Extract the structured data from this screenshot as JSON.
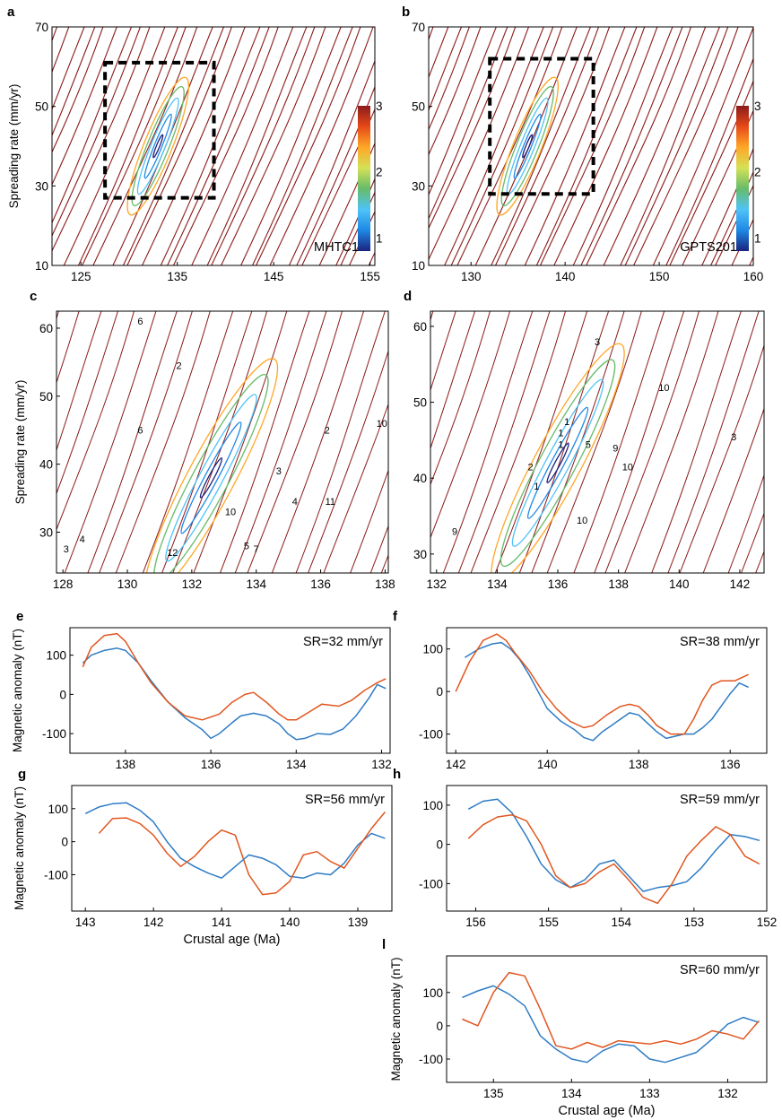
{
  "figure": {
    "contour_panels": [
      {
        "id": "a",
        "letter": "a",
        "model_label": "MHTC12",
        "xlim": [
          122,
          155.5
        ],
        "ylim": [
          10,
          70
        ],
        "xticks": [
          125,
          135,
          145,
          155
        ],
        "yticks": [
          10,
          30,
          50,
          70
        ],
        "ylabel": "Spreading rate (mm/yr)",
        "colorbar": {
          "ticks": [
            1,
            2,
            3
          ],
          "range": [
            0.8,
            3
          ]
        },
        "dashed_box": {
          "x": [
            127.5,
            138.8
          ],
          "y": [
            27,
            61
          ]
        }
      },
      {
        "id": "b",
        "letter": "b",
        "model_label": "GPTS2012",
        "xlim": [
          125.5,
          160
        ],
        "ylim": [
          10,
          70
        ],
        "xticks": [
          130,
          140,
          150,
          160
        ],
        "yticks": [
          10,
          30,
          50,
          70
        ],
        "ylabel": "",
        "colorbar": {
          "ticks": [
            1,
            2,
            3
          ],
          "range": [
            0.8,
            3
          ]
        },
        "dashed_box": {
          "x": [
            132,
            143
          ],
          "y": [
            28,
            62
          ]
        }
      },
      {
        "id": "c",
        "letter": "c",
        "model_label": "",
        "xlim": [
          127.8,
          138.1
        ],
        "ylim": [
          24,
          62.5
        ],
        "xticks": [
          128,
          130,
          132,
          134,
          136,
          138
        ],
        "yticks": [
          30,
          40,
          50,
          60
        ],
        "ylabel": "Spreading rate (mm/yr)",
        "contour_labels": [
          {
            "t": "6",
            "x": 130.4,
            "y": 60.5
          },
          {
            "t": "2",
            "x": 131.6,
            "y": 54
          },
          {
            "t": "6",
            "x": 130.4,
            "y": 44.5
          },
          {
            "t": "2",
            "x": 136.2,
            "y": 44.5
          },
          {
            "t": "10",
            "x": 137.9,
            "y": 45.5
          },
          {
            "t": "3",
            "x": 134.7,
            "y": 38.5
          },
          {
            "t": "10",
            "x": 133.2,
            "y": 32.5
          },
          {
            "t": "4",
            "x": 135.2,
            "y": 34
          },
          {
            "t": "11",
            "x": 136.3,
            "y": 34
          },
          {
            "t": "4",
            "x": 128.6,
            "y": 28.5
          },
          {
            "t": "3",
            "x": 128.1,
            "y": 27
          },
          {
            "t": "12",
            "x": 131.4,
            "y": 26.5
          },
          {
            "t": "5",
            "x": 133.7,
            "y": 27.5
          },
          {
            "t": "7",
            "x": 134,
            "y": 27
          }
        ]
      },
      {
        "id": "d",
        "letter": "d",
        "model_label": "",
        "xlim": [
          131.8,
          142.8
        ],
        "ylim": [
          27.5,
          62
        ],
        "xticks": [
          132,
          134,
          136,
          138,
          140,
          142
        ],
        "yticks": [
          30,
          40,
          50,
          60
        ],
        "ylabel": "",
        "contour_labels": [
          {
            "t": "3",
            "x": 137.3,
            "y": 57.5
          },
          {
            "t": "10",
            "x": 139.5,
            "y": 51.5
          },
          {
            "t": "1",
            "x": 136.3,
            "y": 47
          },
          {
            "t": "1",
            "x": 136.1,
            "y": 45.5
          },
          {
            "t": "1",
            "x": 136.1,
            "y": 44
          },
          {
            "t": "5",
            "x": 137,
            "y": 44
          },
          {
            "t": "9",
            "x": 137.9,
            "y": 43.5
          },
          {
            "t": "10",
            "x": 138.3,
            "y": 41
          },
          {
            "t": "2",
            "x": 135.1,
            "y": 41
          },
          {
            "t": "1",
            "x": 135.3,
            "y": 38.5
          },
          {
            "t": "10",
            "x": 136.8,
            "y": 34
          },
          {
            "t": "9",
            "x": 132.6,
            "y": 32.5
          },
          {
            "t": "3",
            "x": 141.8,
            "y": 45
          }
        ]
      }
    ],
    "contour_colormap": [
      "#1a237e",
      "#1e88e5",
      "#4fc3f7",
      "#66bb6a",
      "#d4e157",
      "#ffa726",
      "#e64a19",
      "#8b1a1a"
    ]
  },
  "chart_data": [
    {
      "panel": "e",
      "type": "line",
      "letter": "e",
      "annotation": "SR=32 mm/yr",
      "xlim": [
        139.3,
        131.8
      ],
      "ylim": [
        -150,
        170
      ],
      "xticks": [
        138,
        136,
        134,
        132
      ],
      "yticks": [
        100,
        0,
        -100
      ],
      "ylabel": "Magnetic anomaly (nT)",
      "xlabel": "",
      "series": [
        {
          "color": "#2e7cc4",
          "x": [
            139,
            138.8,
            138.5,
            138.2,
            138,
            137.7,
            137.4,
            137,
            136.6,
            136.2,
            136,
            135.8,
            135.5,
            135.3,
            135,
            134.7,
            134.4,
            134.2,
            134,
            133.8,
            133.5,
            133.2,
            132.9,
            132.6,
            132.3,
            132.1,
            131.9
          ],
          "y": [
            80,
            100,
            112,
            118,
            112,
            80,
            35,
            -20,
            -60,
            -90,
            -112,
            -100,
            -72,
            -55,
            -48,
            -55,
            -75,
            -100,
            -115,
            -112,
            -100,
            -102,
            -88,
            -55,
            -10,
            25,
            15
          ]
        },
        {
          "color": "#e0561f",
          "x": [
            139,
            138.8,
            138.5,
            138.2,
            138,
            137.7,
            137.4,
            137,
            136.6,
            136.2,
            135.8,
            135.5,
            135.2,
            135,
            134.7,
            134.4,
            134.2,
            134,
            133.7,
            133.4,
            133,
            132.7,
            132.4,
            132.1,
            131.9
          ],
          "y": [
            70,
            120,
            150,
            155,
            135,
            80,
            30,
            -20,
            -55,
            -65,
            -50,
            -20,
            0,
            5,
            -20,
            -50,
            -65,
            -65,
            -45,
            -25,
            -30,
            -15,
            10,
            30,
            40
          ]
        }
      ]
    },
    {
      "panel": "f",
      "type": "line",
      "letter": "f",
      "annotation": "SR=38 mm/yr",
      "xlim": [
        142.2,
        135.2
      ],
      "ylim": [
        -145,
        150
      ],
      "xticks": [
        142,
        140,
        138,
        136
      ],
      "yticks": [
        100,
        0,
        -100
      ],
      "ylabel": "",
      "xlabel": "",
      "series": [
        {
          "color": "#2e7cc4",
          "x": [
            141.8,
            141.5,
            141.2,
            141,
            140.8,
            140.6,
            140.4,
            140.2,
            140,
            139.7,
            139.4,
            139.2,
            139,
            138.8,
            138.6,
            138.4,
            138.2,
            138,
            137.8,
            137.6,
            137.4,
            137.2,
            137,
            136.8,
            136.6,
            136.4,
            136.2,
            136,
            135.8,
            135.6
          ],
          "y": [
            80,
            100,
            112,
            115,
            100,
            75,
            40,
            0,
            -40,
            -70,
            -90,
            -108,
            -115,
            -95,
            -80,
            -65,
            -50,
            -55,
            -75,
            -95,
            -110,
            -105,
            -100,
            -100,
            -85,
            -65,
            -35,
            -5,
            20,
            10
          ]
        },
        {
          "color": "#e0561f",
          "x": [
            142,
            141.7,
            141.4,
            141.1,
            140.9,
            140.7,
            140.4,
            140.1,
            139.8,
            139.5,
            139.2,
            139,
            138.7,
            138.4,
            138.2,
            138,
            137.8,
            137.6,
            137.3,
            137,
            136.8,
            136.6,
            136.4,
            136.2,
            135.9,
            135.6
          ],
          "y": [
            0,
            70,
            120,
            135,
            120,
            90,
            50,
            0,
            -40,
            -70,
            -85,
            -80,
            -55,
            -35,
            -30,
            -35,
            -55,
            -80,
            -100,
            -100,
            -65,
            -20,
            15,
            25,
            25,
            40
          ]
        }
      ]
    },
    {
      "panel": "g",
      "type": "line",
      "letter": "g",
      "annotation": "SR=56 mm/yr",
      "xlim": [
        143.2,
        138.5
      ],
      "ylim": [
        -210,
        170
      ],
      "xticks": [
        143,
        142,
        141,
        140,
        139
      ],
      "yticks": [
        100,
        0,
        -100
      ],
      "ylabel": "Magnetic anomaly (nT)",
      "xlabel": "Crustal age (Ma)",
      "series": [
        {
          "color": "#2e7cc4",
          "x": [
            143,
            142.8,
            142.6,
            142.4,
            142.2,
            142,
            141.8,
            141.6,
            141.4,
            141.2,
            141,
            140.8,
            140.6,
            140.4,
            140.2,
            140,
            139.8,
            139.6,
            139.4,
            139.2,
            139,
            138.8,
            138.6
          ],
          "y": [
            85,
            105,
            115,
            118,
            95,
            60,
            0,
            -50,
            -75,
            -95,
            -110,
            -75,
            -40,
            -50,
            -70,
            -105,
            -110,
            -95,
            -100,
            -65,
            -10,
            25,
            10
          ]
        },
        {
          "color": "#e0561f",
          "x": [
            142.8,
            142.6,
            142.4,
            142.2,
            142,
            141.8,
            141.6,
            141.4,
            141.2,
            141,
            140.8,
            140.6,
            140.4,
            140.2,
            140,
            139.8,
            139.6,
            139.4,
            139.2,
            139,
            138.8,
            138.6
          ],
          "y": [
            25,
            70,
            72,
            55,
            20,
            -35,
            -75,
            -45,
            0,
            35,
            20,
            -100,
            -160,
            -155,
            -120,
            -40,
            -30,
            -60,
            -80,
            -20,
            40,
            90
          ]
        }
      ]
    },
    {
      "panel": "h",
      "type": "line",
      "letter": "h",
      "annotation": "SR=59 mm/yr",
      "xlim": [
        156.4,
        152
      ],
      "ylim": [
        -170,
        150
      ],
      "xticks": [
        156,
        155,
        154,
        153,
        152
      ],
      "yticks": [
        100,
        0,
        -100
      ],
      "ylabel": "",
      "xlabel": "",
      "series": [
        {
          "color": "#2e7cc4",
          "x": [
            156.1,
            155.9,
            155.7,
            155.5,
            155.3,
            155.1,
            154.9,
            154.7,
            154.5,
            154.3,
            154.1,
            153.9,
            153.7,
            153.5,
            153.3,
            153.1,
            152.9,
            152.7,
            152.5,
            152.3,
            152.1
          ],
          "y": [
            90,
            110,
            115,
            80,
            20,
            -50,
            -90,
            -110,
            -90,
            -50,
            -40,
            -80,
            -120,
            -110,
            -105,
            -95,
            -60,
            -15,
            25,
            20,
            10
          ]
        },
        {
          "color": "#e0561f",
          "x": [
            156.1,
            155.9,
            155.7,
            155.5,
            155.3,
            155.1,
            154.9,
            154.7,
            154.5,
            154.3,
            154.1,
            153.9,
            153.7,
            153.5,
            153.3,
            153.1,
            152.9,
            152.7,
            152.5,
            152.3,
            152.1
          ],
          "y": [
            15,
            50,
            70,
            75,
            60,
            0,
            -80,
            -110,
            -100,
            -70,
            -50,
            -90,
            -135,
            -150,
            -100,
            -30,
            10,
            45,
            25,
            -30,
            -50
          ]
        }
      ]
    },
    {
      "panel": "l",
      "type": "line",
      "letter": "l",
      "annotation": "SR=60 mm/yr",
      "xlim": [
        135.6,
        131.5
      ],
      "ylim": [
        -170,
        210
      ],
      "xticks": [
        135,
        134,
        133,
        132
      ],
      "yticks": [
        100,
        0,
        -100
      ],
      "ylabel": "Magnetic anomaly (nT)",
      "xlabel": "Crustal age (Ma)",
      "series": [
        {
          "color": "#2e7cc4",
          "x": [
            135.4,
            135.2,
            135,
            134.8,
            134.6,
            134.4,
            134.2,
            134,
            133.8,
            133.6,
            133.4,
            133.2,
            133,
            132.8,
            132.6,
            132.4,
            132.2,
            132,
            131.8,
            131.6
          ],
          "y": [
            85,
            105,
            120,
            95,
            60,
            -30,
            -70,
            -100,
            -110,
            -75,
            -55,
            -60,
            -100,
            -110,
            -95,
            -80,
            -40,
            5,
            25,
            10
          ]
        },
        {
          "color": "#e0561f",
          "x": [
            135.4,
            135.2,
            135,
            134.8,
            134.6,
            134.4,
            134.2,
            134,
            133.8,
            133.6,
            133.4,
            133.2,
            133,
            132.8,
            132.6,
            132.4,
            132.2,
            132,
            131.8,
            131.6
          ],
          "y": [
            20,
            0,
            100,
            160,
            150,
            50,
            -60,
            -70,
            -50,
            -65,
            -45,
            -50,
            -55,
            -45,
            -55,
            -40,
            -15,
            -25,
            -40,
            15
          ]
        }
      ]
    }
  ]
}
